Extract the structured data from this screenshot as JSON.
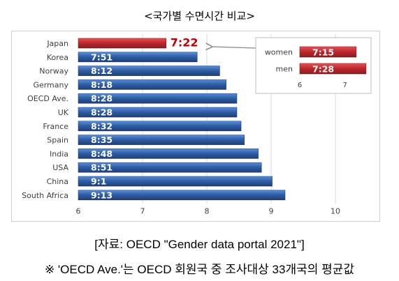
{
  "title": "<국가별 수면시간 비교>",
  "source": "[자료: OECD \"Gender data portal 2021\"]",
  "note": "※ 'OECD Ave.'는 OECD 회원국 중 조사대상 33개국의 평균값",
  "colors": {
    "bar_blue": "#2f5fa6",
    "bar_red": "#c0272d",
    "highlight_text": "#c00000",
    "grid": "#d9d9d9"
  },
  "chart_data": [
    {
      "type": "bar",
      "orientation": "horizontal",
      "categories": [
        "Japan",
        "Korea",
        "Norway",
        "Germany",
        "OECD Ave.",
        "UK",
        "France",
        "Spain",
        "India",
        "USA",
        "China",
        "South Africa"
      ],
      "values": [
        7.367,
        7.85,
        8.2,
        8.3,
        8.467,
        8.467,
        8.533,
        8.583,
        8.8,
        8.85,
        9.017,
        9.217
      ],
      "labels": [
        "7:22",
        "7:51",
        "8:12",
        "8:18",
        "8:28",
        "8:28",
        "8:32",
        "8:35",
        "8:48",
        "8:51",
        "9:1",
        "9:13"
      ],
      "highlight": "Japan",
      "xlim": [
        6,
        10
      ],
      "xticks": [
        "6",
        "7",
        "8",
        "9",
        "10"
      ],
      "grid": true
    },
    {
      "type": "bar",
      "orientation": "horizontal",
      "categories": [
        "women",
        "men"
      ],
      "values": [
        7.25,
        7.467
      ],
      "labels": [
        "7:15",
        "7:28"
      ],
      "xlim": [
        6,
        7.5
      ],
      "xticks": [
        "6",
        "7"
      ],
      "grid": false
    }
  ]
}
